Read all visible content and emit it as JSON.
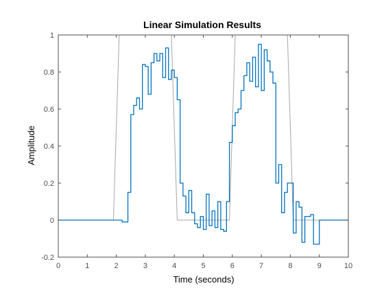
{
  "chart_data": {
    "type": "line",
    "title": "Linear Simulation Results",
    "xlabel": "Time (seconds)",
    "ylabel": "Amplitude",
    "xlim": [
      0,
      10
    ],
    "ylim": [
      -0.2,
      1
    ],
    "xticks": [
      0,
      1,
      2,
      3,
      4,
      5,
      6,
      7,
      8,
      9,
      10
    ],
    "yticks": [
      -0.2,
      0,
      0.2,
      0.4,
      0.6,
      0.8,
      1
    ],
    "grid": false,
    "colors": {
      "input": "#a6a6a6",
      "response": "#0072bd",
      "axes": "#4d4d4d"
    },
    "series": [
      {
        "role": "input",
        "x": [
          0,
          1.9,
          2.1,
          3.9,
          4.1,
          5.9,
          6.1,
          7.9,
          8.1,
          10
        ],
        "y": [
          0,
          0,
          1,
          1,
          0,
          0,
          1,
          1,
          0,
          0
        ]
      },
      {
        "role": "response",
        "step": true,
        "x": [
          0,
          2.0,
          2.2,
          2.4,
          2.5,
          2.6,
          2.7,
          2.8,
          2.9,
          3.0,
          3.1,
          3.2,
          3.3,
          3.4,
          3.5,
          3.6,
          3.7,
          3.8,
          3.9,
          4.0,
          4.1,
          4.2,
          4.3,
          4.4,
          4.5,
          4.6,
          4.7,
          4.8,
          4.9,
          5.0,
          5.1,
          5.2,
          5.3,
          5.4,
          5.5,
          5.6,
          5.7,
          5.8,
          5.9,
          6.0,
          6.1,
          6.2,
          6.3,
          6.4,
          6.5,
          6.6,
          6.7,
          6.8,
          6.9,
          7.0,
          7.1,
          7.2,
          7.3,
          7.4,
          7.5,
          7.6,
          7.7,
          7.8,
          7.9,
          8.0,
          8.1,
          8.2,
          8.3,
          8.4,
          8.5,
          8.6,
          8.7,
          8.8,
          8.9,
          9.0,
          9.1,
          9.2,
          9.3,
          9.4,
          9.5,
          9.6,
          9.7,
          9.8,
          9.9,
          10
        ],
        "y": [
          0,
          0,
          -0.01,
          0.15,
          0.57,
          0.62,
          0.66,
          0.6,
          0.84,
          0.83,
          0.68,
          0.85,
          0.9,
          0.86,
          0.9,
          0.77,
          0.93,
          0.76,
          0.81,
          0.77,
          0.65,
          0.2,
          0.13,
          0.04,
          0.16,
          0.04,
          -0.02,
          -0.04,
          0.02,
          -0.05,
          0.14,
          -0.03,
          0.05,
          -0.04,
          0.1,
          -0.05,
          -0.06,
          0.1,
          0.42,
          0.51,
          0.58,
          0.6,
          0.7,
          0.78,
          0.85,
          0.75,
          0.88,
          0.72,
          0.95,
          0.7,
          0.92,
          0.86,
          0.8,
          0.74,
          0.2,
          0.3,
          0.04,
          0.15,
          0.2,
          0.2,
          -0.07,
          0.1,
          0.07,
          -0.12,
          0.02,
          0.02,
          0.03,
          -0.13,
          -0.13,
          0,
          0,
          0,
          0,
          0,
          0,
          0,
          0,
          0,
          0,
          0
        ]
      }
    ]
  }
}
